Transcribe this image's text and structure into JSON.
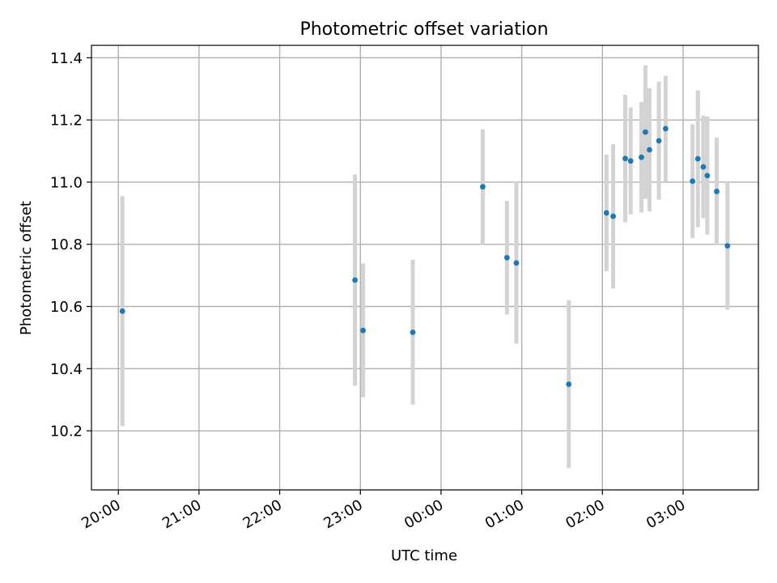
{
  "chart_data": {
    "type": "scatter",
    "title": "Photometric offset variation",
    "xlabel": "UTC time",
    "ylabel": "Photometric offset",
    "x_ticks": [
      "20:00",
      "21:00",
      "22:00",
      "23:00",
      "00:00",
      "01:00",
      "02:00",
      "03:00"
    ],
    "y_ticks": [
      "10.2",
      "10.4",
      "10.6",
      "10.8",
      "11.0",
      "11.2",
      "11.4"
    ],
    "xlim": [
      "19:40",
      "03:56"
    ],
    "ylim": [
      10.01,
      11.44
    ],
    "grid": true,
    "marker_color": "#1f77b4",
    "errorbar_color": "#d3d3d3",
    "points": [
      {
        "x": "20:03",
        "y": 10.585,
        "yerr": 0.37
      },
      {
        "x": "22:56",
        "y": 10.685,
        "yerr": 0.34
      },
      {
        "x": "23:02",
        "y": 10.523,
        "yerr": 0.215
      },
      {
        "x": "23:39",
        "y": 10.517,
        "yerr": 0.233
      },
      {
        "x": "00:31",
        "y": 10.985,
        "yerr": 0.185
      },
      {
        "x": "00:49",
        "y": 10.757,
        "yerr": 0.183
      },
      {
        "x": "00:56",
        "y": 10.74,
        "yerr": 0.26
      },
      {
        "x": "01:35",
        "y": 10.35,
        "yerr": 0.27
      },
      {
        "x": "02:03",
        "y": 10.901,
        "yerr": 0.188
      },
      {
        "x": "02:08",
        "y": 10.89,
        "yerr": 0.232
      },
      {
        "x": "02:17",
        "y": 11.076,
        "yerr": 0.205
      },
      {
        "x": "02:21",
        "y": 11.068,
        "yerr": 0.172
      },
      {
        "x": "02:29",
        "y": 11.08,
        "yerr": 0.178
      },
      {
        "x": "02:32",
        "y": 11.161,
        "yerr": 0.215
      },
      {
        "x": "02:35",
        "y": 11.104,
        "yerr": 0.198
      },
      {
        "x": "02:42",
        "y": 11.133,
        "yerr": 0.19
      },
      {
        "x": "02:47",
        "y": 11.172,
        "yerr": 0.17
      },
      {
        "x": "03:07",
        "y": 11.003,
        "yerr": 0.183
      },
      {
        "x": "03:11",
        "y": 11.075,
        "yerr": 0.22
      },
      {
        "x": "03:15",
        "y": 11.049,
        "yerr": 0.165
      },
      {
        "x": "03:18",
        "y": 11.021,
        "yerr": 0.19
      },
      {
        "x": "03:25",
        "y": 10.97,
        "yerr": 0.173
      },
      {
        "x": "03:33",
        "y": 10.795,
        "yerr": 0.205
      }
    ]
  }
}
